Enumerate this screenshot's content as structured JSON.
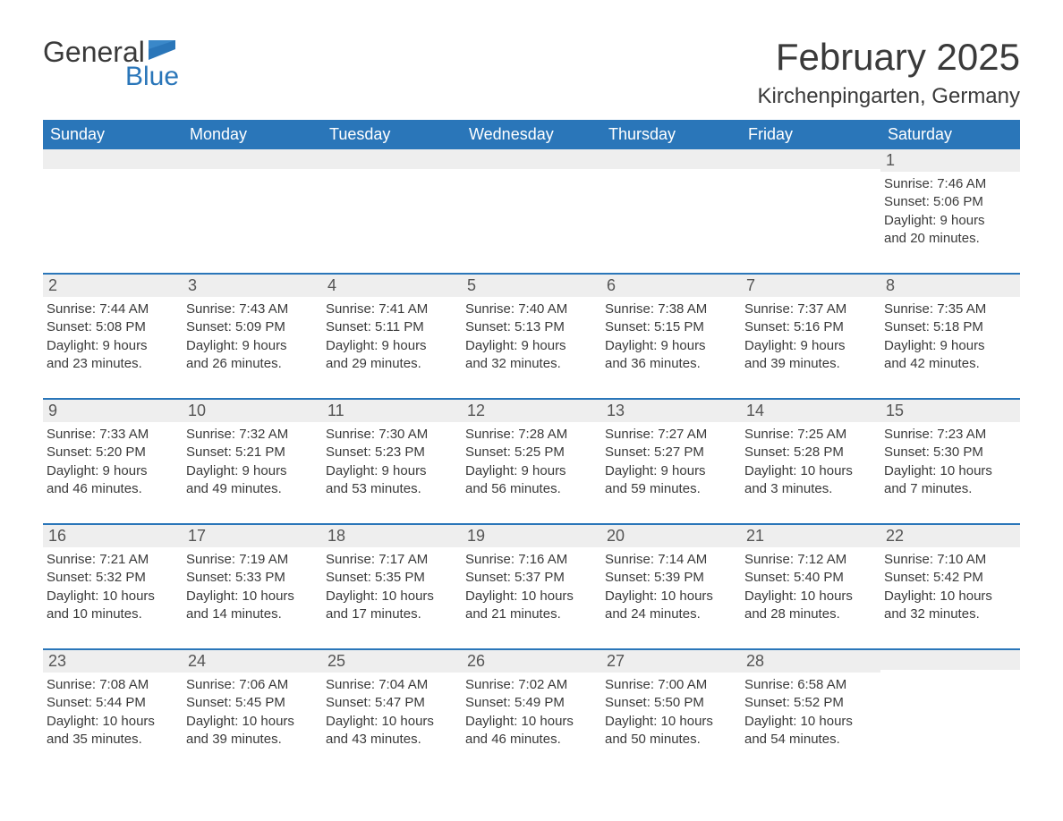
{
  "logo": {
    "text_general": "General",
    "text_blue": "Blue",
    "flag_color": "#2a76b9"
  },
  "title": "February 2025",
  "location": "Kirchenpingarten, Germany",
  "colors": {
    "header_bg": "#2a76b9",
    "header_text": "#ffffff",
    "row_separator": "#2a76b9",
    "daynum_bg": "#eeeeee",
    "body_text": "#3a3a3a",
    "background": "#ffffff"
  },
  "typography": {
    "title_fontsize": 42,
    "location_fontsize": 24,
    "weekday_fontsize": 18,
    "daynum_fontsize": 18,
    "info_fontsize": 15
  },
  "weekdays": [
    "Sunday",
    "Monday",
    "Tuesday",
    "Wednesday",
    "Thursday",
    "Friday",
    "Saturday"
  ],
  "labels": {
    "sunrise": "Sunrise:",
    "sunset": "Sunset:",
    "daylight": "Daylight:"
  },
  "weeks": [
    [
      null,
      null,
      null,
      null,
      null,
      null,
      {
        "day": "1",
        "sunrise": "7:46 AM",
        "sunset": "5:06 PM",
        "daylight_l1": "9 hours",
        "daylight_l2": "and 20 minutes."
      }
    ],
    [
      {
        "day": "2",
        "sunrise": "7:44 AM",
        "sunset": "5:08 PM",
        "daylight_l1": "9 hours",
        "daylight_l2": "and 23 minutes."
      },
      {
        "day": "3",
        "sunrise": "7:43 AM",
        "sunset": "5:09 PM",
        "daylight_l1": "9 hours",
        "daylight_l2": "and 26 minutes."
      },
      {
        "day": "4",
        "sunrise": "7:41 AM",
        "sunset": "5:11 PM",
        "daylight_l1": "9 hours",
        "daylight_l2": "and 29 minutes."
      },
      {
        "day": "5",
        "sunrise": "7:40 AM",
        "sunset": "5:13 PM",
        "daylight_l1": "9 hours",
        "daylight_l2": "and 32 minutes."
      },
      {
        "day": "6",
        "sunrise": "7:38 AM",
        "sunset": "5:15 PM",
        "daylight_l1": "9 hours",
        "daylight_l2": "and 36 minutes."
      },
      {
        "day": "7",
        "sunrise": "7:37 AM",
        "sunset": "5:16 PM",
        "daylight_l1": "9 hours",
        "daylight_l2": "and 39 minutes."
      },
      {
        "day": "8",
        "sunrise": "7:35 AM",
        "sunset": "5:18 PM",
        "daylight_l1": "9 hours",
        "daylight_l2": "and 42 minutes."
      }
    ],
    [
      {
        "day": "9",
        "sunrise": "7:33 AM",
        "sunset": "5:20 PM",
        "daylight_l1": "9 hours",
        "daylight_l2": "and 46 minutes."
      },
      {
        "day": "10",
        "sunrise": "7:32 AM",
        "sunset": "5:21 PM",
        "daylight_l1": "9 hours",
        "daylight_l2": "and 49 minutes."
      },
      {
        "day": "11",
        "sunrise": "7:30 AM",
        "sunset": "5:23 PM",
        "daylight_l1": "9 hours",
        "daylight_l2": "and 53 minutes."
      },
      {
        "day": "12",
        "sunrise": "7:28 AM",
        "sunset": "5:25 PM",
        "daylight_l1": "9 hours",
        "daylight_l2": "and 56 minutes."
      },
      {
        "day": "13",
        "sunrise": "7:27 AM",
        "sunset": "5:27 PM",
        "daylight_l1": "9 hours",
        "daylight_l2": "and 59 minutes."
      },
      {
        "day": "14",
        "sunrise": "7:25 AM",
        "sunset": "5:28 PM",
        "daylight_l1": "10 hours",
        "daylight_l2": "and 3 minutes."
      },
      {
        "day": "15",
        "sunrise": "7:23 AM",
        "sunset": "5:30 PM",
        "daylight_l1": "10 hours",
        "daylight_l2": "and 7 minutes."
      }
    ],
    [
      {
        "day": "16",
        "sunrise": "7:21 AM",
        "sunset": "5:32 PM",
        "daylight_l1": "10 hours",
        "daylight_l2": "and 10 minutes."
      },
      {
        "day": "17",
        "sunrise": "7:19 AM",
        "sunset": "5:33 PM",
        "daylight_l1": "10 hours",
        "daylight_l2": "and 14 minutes."
      },
      {
        "day": "18",
        "sunrise": "7:17 AM",
        "sunset": "5:35 PM",
        "daylight_l1": "10 hours",
        "daylight_l2": "and 17 minutes."
      },
      {
        "day": "19",
        "sunrise": "7:16 AM",
        "sunset": "5:37 PM",
        "daylight_l1": "10 hours",
        "daylight_l2": "and 21 minutes."
      },
      {
        "day": "20",
        "sunrise": "7:14 AM",
        "sunset": "5:39 PM",
        "daylight_l1": "10 hours",
        "daylight_l2": "and 24 minutes."
      },
      {
        "day": "21",
        "sunrise": "7:12 AM",
        "sunset": "5:40 PM",
        "daylight_l1": "10 hours",
        "daylight_l2": "and 28 minutes."
      },
      {
        "day": "22",
        "sunrise": "7:10 AM",
        "sunset": "5:42 PM",
        "daylight_l1": "10 hours",
        "daylight_l2": "and 32 minutes."
      }
    ],
    [
      {
        "day": "23",
        "sunrise": "7:08 AM",
        "sunset": "5:44 PM",
        "daylight_l1": "10 hours",
        "daylight_l2": "and 35 minutes."
      },
      {
        "day": "24",
        "sunrise": "7:06 AM",
        "sunset": "5:45 PM",
        "daylight_l1": "10 hours",
        "daylight_l2": "and 39 minutes."
      },
      {
        "day": "25",
        "sunrise": "7:04 AM",
        "sunset": "5:47 PM",
        "daylight_l1": "10 hours",
        "daylight_l2": "and 43 minutes."
      },
      {
        "day": "26",
        "sunrise": "7:02 AM",
        "sunset": "5:49 PM",
        "daylight_l1": "10 hours",
        "daylight_l2": "and 46 minutes."
      },
      {
        "day": "27",
        "sunrise": "7:00 AM",
        "sunset": "5:50 PM",
        "daylight_l1": "10 hours",
        "daylight_l2": "and 50 minutes."
      },
      {
        "day": "28",
        "sunrise": "6:58 AM",
        "sunset": "5:52 PM",
        "daylight_l1": "10 hours",
        "daylight_l2": "and 54 minutes."
      },
      null
    ]
  ]
}
